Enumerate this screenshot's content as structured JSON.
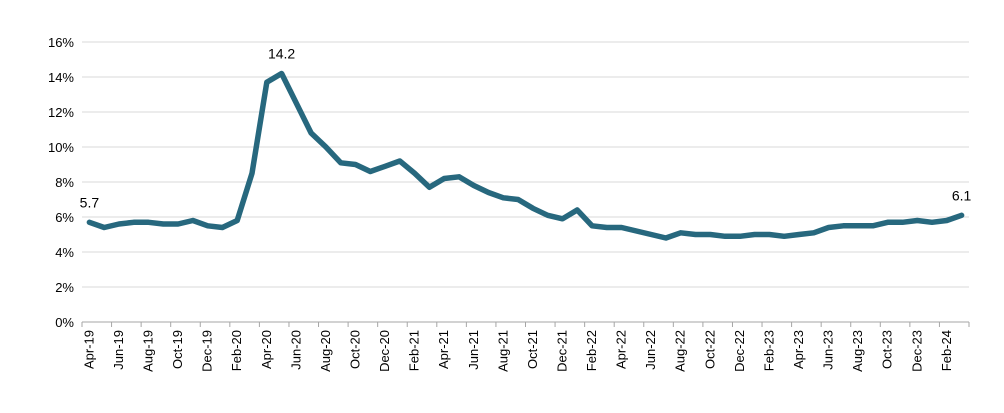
{
  "chart_data": {
    "type": "line",
    "title": "",
    "xlabel": "",
    "ylabel": "",
    "ylim": [
      0,
      16
    ],
    "yticks": [
      "0%",
      "2%",
      "4%",
      "6%",
      "8%",
      "10%",
      "12%",
      "14%",
      "16%"
    ],
    "grid": "horizontal",
    "legend": "none",
    "colors": {
      "line": "#27687E",
      "grid": "#D9D9D9",
      "axis": "#A6A6A6"
    },
    "x": [
      "Apr-19",
      "May-19",
      "Jun-19",
      "Jul-19",
      "Aug-19",
      "Sep-19",
      "Oct-19",
      "Nov-19",
      "Dec-19",
      "Jan-20",
      "Feb-20",
      "Mar-20",
      "Apr-20",
      "May-20",
      "Jun-20",
      "Jul-20",
      "Aug-20",
      "Sep-20",
      "Oct-20",
      "Nov-20",
      "Dec-20",
      "Jan-21",
      "Feb-21",
      "Mar-21",
      "Apr-21",
      "May-21",
      "Jun-21",
      "Jul-21",
      "Aug-21",
      "Sep-21",
      "Oct-21",
      "Nov-21",
      "Dec-21",
      "Jan-22",
      "Feb-22",
      "Mar-22",
      "Apr-22",
      "May-22",
      "Jun-22",
      "Jul-22",
      "Aug-22",
      "Sep-22",
      "Oct-22",
      "Nov-22",
      "Dec-22",
      "Jan-23",
      "Feb-23",
      "Mar-23",
      "Apr-23",
      "May-23",
      "Jun-23",
      "Jul-23",
      "Aug-23",
      "Sep-23",
      "Oct-23",
      "Nov-23",
      "Dec-23",
      "Jan-24",
      "Feb-24",
      "Mar-24"
    ],
    "xtick_labels": [
      "Apr-19",
      "Jun-19",
      "Aug-19",
      "Oct-19",
      "Dec-19",
      "Feb-20",
      "Apr-20",
      "Jun-20",
      "Aug-20",
      "Oct-20",
      "Dec-20",
      "Feb-21",
      "Apr-21",
      "Jun-21",
      "Aug-21",
      "Oct-21",
      "Dec-21",
      "Feb-22",
      "Apr-22",
      "Jun-22",
      "Aug-22",
      "Oct-22",
      "Dec-22",
      "Feb-23",
      "Apr-23",
      "Jun-23",
      "Aug-23",
      "Oct-23",
      "Dec-23",
      "Feb-24"
    ],
    "series": [
      {
        "values": [
          5.7,
          5.4,
          5.6,
          5.7,
          5.7,
          5.6,
          5.6,
          5.8,
          5.5,
          5.4,
          5.8,
          8.5,
          13.7,
          14.2,
          12.5,
          10.8,
          10.0,
          9.1,
          9.0,
          8.6,
          8.9,
          9.2,
          8.5,
          7.7,
          8.2,
          8.3,
          7.8,
          7.4,
          7.1,
          7.0,
          6.5,
          6.1,
          5.9,
          6.4,
          5.5,
          5.4,
          5.4,
          5.2,
          5.0,
          4.8,
          5.1,
          5.0,
          5.0,
          4.9,
          4.9,
          5.0,
          5.0,
          4.9,
          5.0,
          5.1,
          5.4,
          5.5,
          5.5,
          5.5,
          5.7,
          5.7,
          5.8,
          5.7,
          5.8,
          6.1
        ]
      }
    ],
    "data_labels": [
      {
        "index": 0,
        "text": "5.7"
      },
      {
        "index": 13,
        "text": "14.2"
      },
      {
        "index": 59,
        "text": "6.1"
      }
    ]
  }
}
